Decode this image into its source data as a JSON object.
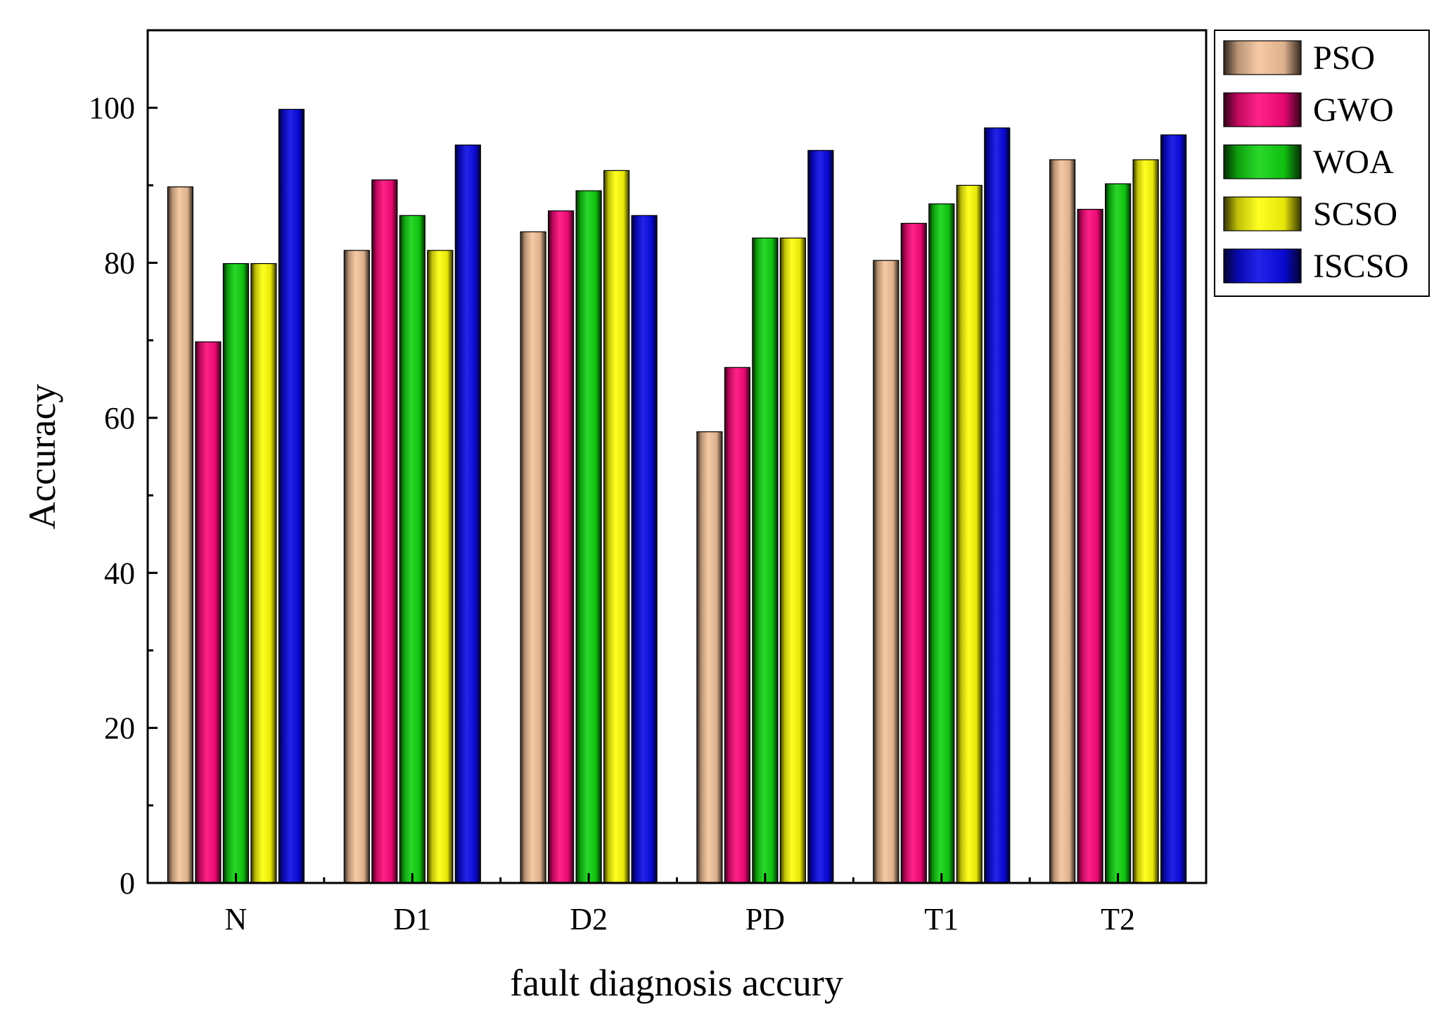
{
  "chart_data": {
    "type": "bar",
    "title": "",
    "xlabel": "fault diagnosis accury",
    "ylabel": "Accuracy",
    "ylim": [
      0,
      110
    ],
    "yticks": [
      0,
      20,
      40,
      60,
      80,
      100
    ],
    "ytick_labels": [
      "0",
      "20",
      "40",
      "60",
      "80",
      "100"
    ],
    "grid": false,
    "legend_position": "top-right",
    "categories": [
      "N",
      "D1",
      "D2",
      "PD",
      "T1",
      "T2"
    ],
    "series": [
      {
        "name": "PSO",
        "color": "#f5c49b",
        "values": [
          89.8,
          81.6,
          84.0,
          58.2,
          80.3,
          93.3
        ]
      },
      {
        "name": "GWO",
        "color": "#ff0a7c",
        "values": [
          69.8,
          90.7,
          86.7,
          66.5,
          85.1,
          86.9
        ]
      },
      {
        "name": "WOA",
        "color": "#12d412",
        "values": [
          79.9,
          86.1,
          89.3,
          83.2,
          87.6,
          90.2
        ]
      },
      {
        "name": "SCSO",
        "color": "#ffff0a",
        "values": [
          79.9,
          81.6,
          91.9,
          83.2,
          90.0,
          93.3
        ]
      },
      {
        "name": "ISCSO",
        "color": "#0a0ae6",
        "values": [
          99.8,
          95.2,
          86.1,
          94.5,
          97.4,
          96.5
        ]
      }
    ]
  }
}
